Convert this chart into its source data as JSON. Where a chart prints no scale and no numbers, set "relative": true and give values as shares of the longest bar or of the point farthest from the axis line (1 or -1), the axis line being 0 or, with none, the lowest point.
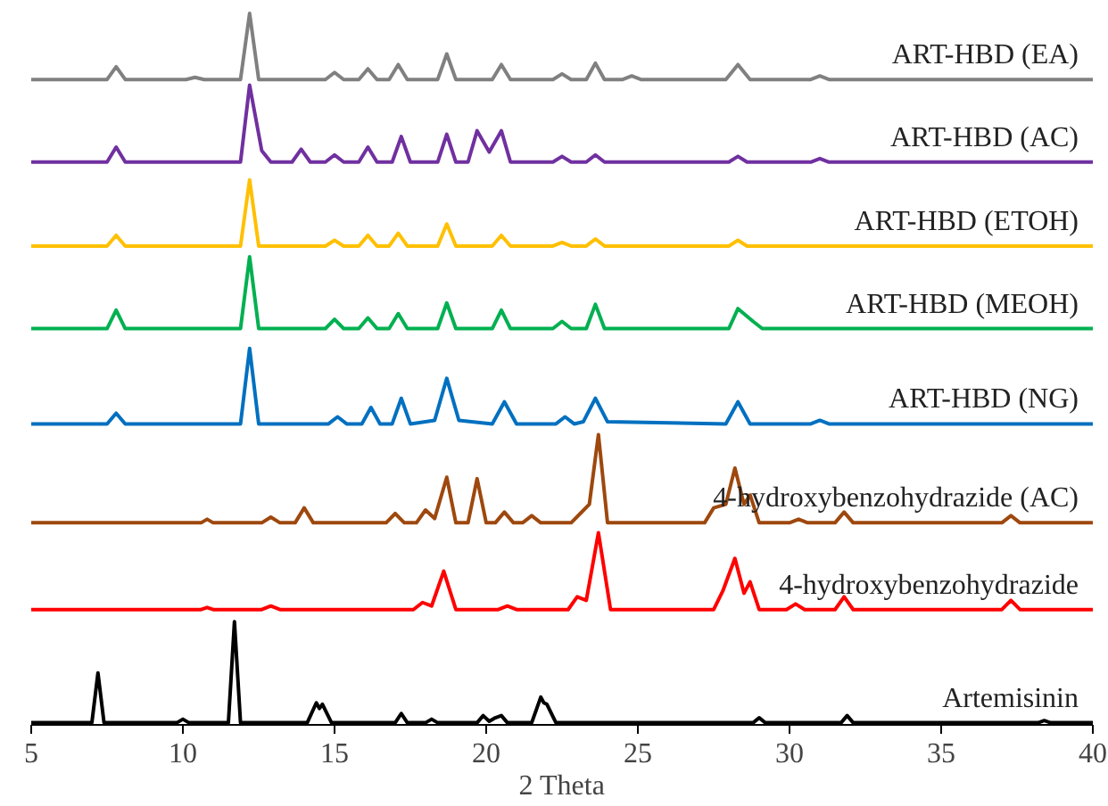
{
  "chart_data": {
    "type": "line",
    "relative": true,
    "xlabel": "2 Theta",
    "xlim": [
      5,
      40
    ],
    "xticks": [
      5,
      10,
      15,
      20,
      25,
      30,
      35,
      40
    ],
    "grid": false,
    "legend": false,
    "marker": "none",
    "line_style": "solid",
    "series": [
      {
        "name": "ART-HBD (EA)",
        "color": "#808080",
        "x": [
          5,
          7.5,
          7.8,
          8.1,
          10.1,
          10.4,
          10.7,
          11.9,
          12.2,
          12.5,
          14.7,
          15.0,
          15.3,
          15.8,
          16.1,
          16.4,
          16.8,
          17.1,
          17.4,
          18.4,
          18.7,
          19.0,
          20.2,
          20.5,
          20.8,
          22.2,
          22.5,
          22.8,
          23.3,
          23.6,
          23.9,
          24.5,
          24.8,
          25.1,
          27.9,
          28.3,
          28.7,
          30.7,
          31.0,
          31.3,
          40
        ],
        "values": [
          0.907,
          0.907,
          0.925,
          0.907,
          0.907,
          0.91,
          0.907,
          0.907,
          1.0,
          0.907,
          0.907,
          0.917,
          0.907,
          0.907,
          0.922,
          0.907,
          0.907,
          0.928,
          0.907,
          0.907,
          0.943,
          0.907,
          0.907,
          0.928,
          0.907,
          0.907,
          0.915,
          0.907,
          0.907,
          0.93,
          0.907,
          0.907,
          0.912,
          0.907,
          0.907,
          0.928,
          0.907,
          0.907,
          0.912,
          0.907,
          0.907
        ]
      },
      {
        "name": "ART-HBD (AC)",
        "color": "#7030a0",
        "x": [
          5,
          7.5,
          7.8,
          8.1,
          11.9,
          12.2,
          12.6,
          12.9,
          13.6,
          13.9,
          14.2,
          14.7,
          15.0,
          15.3,
          15.8,
          16.1,
          16.4,
          16.9,
          17.2,
          17.5,
          18.4,
          18.7,
          19.0,
          19.4,
          19.7,
          20.1,
          20.5,
          20.8,
          22.2,
          22.5,
          22.8,
          23.3,
          23.6,
          23.9,
          28.0,
          28.3,
          28.6,
          30.7,
          31.0,
          31.3,
          40
        ],
        "values": [
          0.791,
          0.791,
          0.812,
          0.791,
          0.791,
          0.899,
          0.807,
          0.791,
          0.791,
          0.809,
          0.791,
          0.791,
          0.801,
          0.791,
          0.791,
          0.812,
          0.791,
          0.791,
          0.827,
          0.791,
          0.791,
          0.83,
          0.791,
          0.791,
          0.835,
          0.805,
          0.835,
          0.791,
          0.791,
          0.799,
          0.791,
          0.791,
          0.801,
          0.791,
          0.791,
          0.799,
          0.791,
          0.791,
          0.796,
          0.791,
          0.791
        ]
      },
      {
        "name": "ART-HBD (ETOH)",
        "color": "#ffc000",
        "x": [
          5,
          7.5,
          7.8,
          8.1,
          11.9,
          12.2,
          12.5,
          14.7,
          15.0,
          15.3,
          15.8,
          16.1,
          16.4,
          16.8,
          17.1,
          17.4,
          18.4,
          18.7,
          19.0,
          20.2,
          20.5,
          20.8,
          22.2,
          22.5,
          22.8,
          23.3,
          23.6,
          23.9,
          28.0,
          28.3,
          28.6,
          40
        ],
        "values": [
          0.673,
          0.673,
          0.688,
          0.673,
          0.673,
          0.766,
          0.673,
          0.673,
          0.681,
          0.673,
          0.673,
          0.688,
          0.673,
          0.673,
          0.691,
          0.673,
          0.673,
          0.704,
          0.673,
          0.673,
          0.688,
          0.673,
          0.673,
          0.678,
          0.673,
          0.673,
          0.683,
          0.673,
          0.673,
          0.681,
          0.673,
          0.673
        ]
      },
      {
        "name": "ART-HBD (MEOH)",
        "color": "#00b050",
        "x": [
          5,
          7.5,
          7.8,
          8.1,
          11.9,
          12.2,
          12.5,
          14.7,
          15.0,
          15.3,
          15.8,
          16.1,
          16.4,
          16.8,
          17.1,
          17.4,
          18.4,
          18.7,
          19.0,
          20.2,
          20.5,
          20.8,
          22.2,
          22.5,
          22.8,
          23.3,
          23.6,
          23.9,
          28.0,
          28.3,
          28.8,
          29.1,
          40
        ],
        "values": [
          0.557,
          0.557,
          0.583,
          0.557,
          0.557,
          0.658,
          0.557,
          0.557,
          0.57,
          0.557,
          0.557,
          0.572,
          0.557,
          0.557,
          0.578,
          0.557,
          0.557,
          0.593,
          0.557,
          0.557,
          0.583,
          0.557,
          0.557,
          0.567,
          0.557,
          0.557,
          0.591,
          0.557,
          0.557,
          0.585,
          0.567,
          0.557,
          0.557
        ]
      },
      {
        "name": "ART-HBD (NG)",
        "color": "#0070c0",
        "x": [
          5,
          7.5,
          7.8,
          8.1,
          11.9,
          12.2,
          12.5,
          14.8,
          15.1,
          15.4,
          15.9,
          16.2,
          16.5,
          16.9,
          17.2,
          17.5,
          18.3,
          18.7,
          19.1,
          20.2,
          20.6,
          21.0,
          22.3,
          22.6,
          22.9,
          23.2,
          23.6,
          24.0,
          27.9,
          28.3,
          28.7,
          30.7,
          31.0,
          31.3,
          40
        ],
        "values": [
          0.423,
          0.423,
          0.438,
          0.423,
          0.423,
          0.529,
          0.423,
          0.423,
          0.433,
          0.423,
          0.423,
          0.446,
          0.423,
          0.423,
          0.459,
          0.423,
          0.428,
          0.487,
          0.428,
          0.423,
          0.454,
          0.423,
          0.423,
          0.433,
          0.423,
          0.426,
          0.459,
          0.426,
          0.423,
          0.454,
          0.423,
          0.423,
          0.428,
          0.423,
          0.423
        ]
      },
      {
        "name": "4-hydroxybenzohydrazide (AC)",
        "color": "#9e480e",
        "x": [
          5,
          10.6,
          10.8,
          11.0,
          12.6,
          12.9,
          13.2,
          13.7,
          14.0,
          14.3,
          16.7,
          17.0,
          17.3,
          17.7,
          18.0,
          18.3,
          18.7,
          19.0,
          19.4,
          19.7,
          20.0,
          20.3,
          20.6,
          20.9,
          21.2,
          21.5,
          21.8,
          22.8,
          23.1,
          23.4,
          23.7,
          24.0,
          27.2,
          27.5,
          27.9,
          28.2,
          28.5,
          28.7,
          29.0,
          30.0,
          30.3,
          30.6,
          31.5,
          31.8,
          32.1,
          37.0,
          37.3,
          37.6,
          40
        ],
        "values": [
          0.284,
          0.284,
          0.289,
          0.284,
          0.284,
          0.292,
          0.284,
          0.284,
          0.305,
          0.284,
          0.284,
          0.297,
          0.284,
          0.284,
          0.302,
          0.29,
          0.348,
          0.284,
          0.284,
          0.346,
          0.284,
          0.284,
          0.299,
          0.284,
          0.284,
          0.294,
          0.284,
          0.284,
          0.297,
          0.31,
          0.408,
          0.284,
          0.284,
          0.305,
          0.31,
          0.361,
          0.31,
          0.323,
          0.284,
          0.284,
          0.289,
          0.284,
          0.284,
          0.299,
          0.284,
          0.284,
          0.294,
          0.284,
          0.284
        ]
      },
      {
        "name": "4-hydroxybenzohydrazide",
        "color": "#ff0000",
        "x": [
          5,
          10.6,
          10.8,
          11.0,
          12.6,
          12.9,
          13.2,
          17.6,
          17.9,
          18.2,
          18.6,
          19.0,
          20.4,
          20.7,
          21.0,
          22.7,
          23.0,
          23.3,
          23.7,
          24.1,
          27.5,
          27.8,
          28.2,
          28.5,
          28.7,
          29.0,
          29.9,
          30.2,
          30.5,
          31.5,
          31.8,
          32.1,
          37.0,
          37.3,
          37.6,
          40
        ],
        "values": [
          0.162,
          0.162,
          0.165,
          0.162,
          0.162,
          0.167,
          0.162,
          0.162,
          0.172,
          0.167,
          0.216,
          0.162,
          0.162,
          0.167,
          0.162,
          0.162,
          0.18,
          0.175,
          0.27,
          0.162,
          0.162,
          0.188,
          0.234,
          0.185,
          0.201,
          0.162,
          0.162,
          0.17,
          0.162,
          0.162,
          0.18,
          0.162,
          0.162,
          0.175,
          0.162,
          0.162
        ]
      },
      {
        "name": "Artemisinin",
        "color": "#000000",
        "x": [
          5,
          7.0,
          7.2,
          7.4,
          9.8,
          10.0,
          10.2,
          11.5,
          11.7,
          11.9,
          14.1,
          14.4,
          14.5,
          14.6,
          14.9,
          17.0,
          17.2,
          17.4,
          18.0,
          18.2,
          18.4,
          19.7,
          19.9,
          20.1,
          20.3,
          20.5,
          20.7,
          21.5,
          21.8,
          21.9,
          22.0,
          22.3,
          28.8,
          29.0,
          29.2,
          31.7,
          31.9,
          32.1,
          38.2,
          38.4,
          38.6,
          40
        ],
        "values": [
          0.003,
          0.003,
          0.073,
          0.003,
          0.003,
          0.008,
          0.003,
          0.003,
          0.145,
          0.003,
          0.003,
          0.031,
          0.023,
          0.029,
          0.003,
          0.003,
          0.016,
          0.003,
          0.003,
          0.008,
          0.003,
          0.003,
          0.013,
          0.005,
          0.01,
          0.013,
          0.003,
          0.003,
          0.039,
          0.031,
          0.029,
          0.003,
          0.003,
          0.01,
          0.003,
          0.003,
          0.013,
          0.003,
          0.003,
          0.006,
          0.003,
          0.003
        ]
      }
    ]
  }
}
